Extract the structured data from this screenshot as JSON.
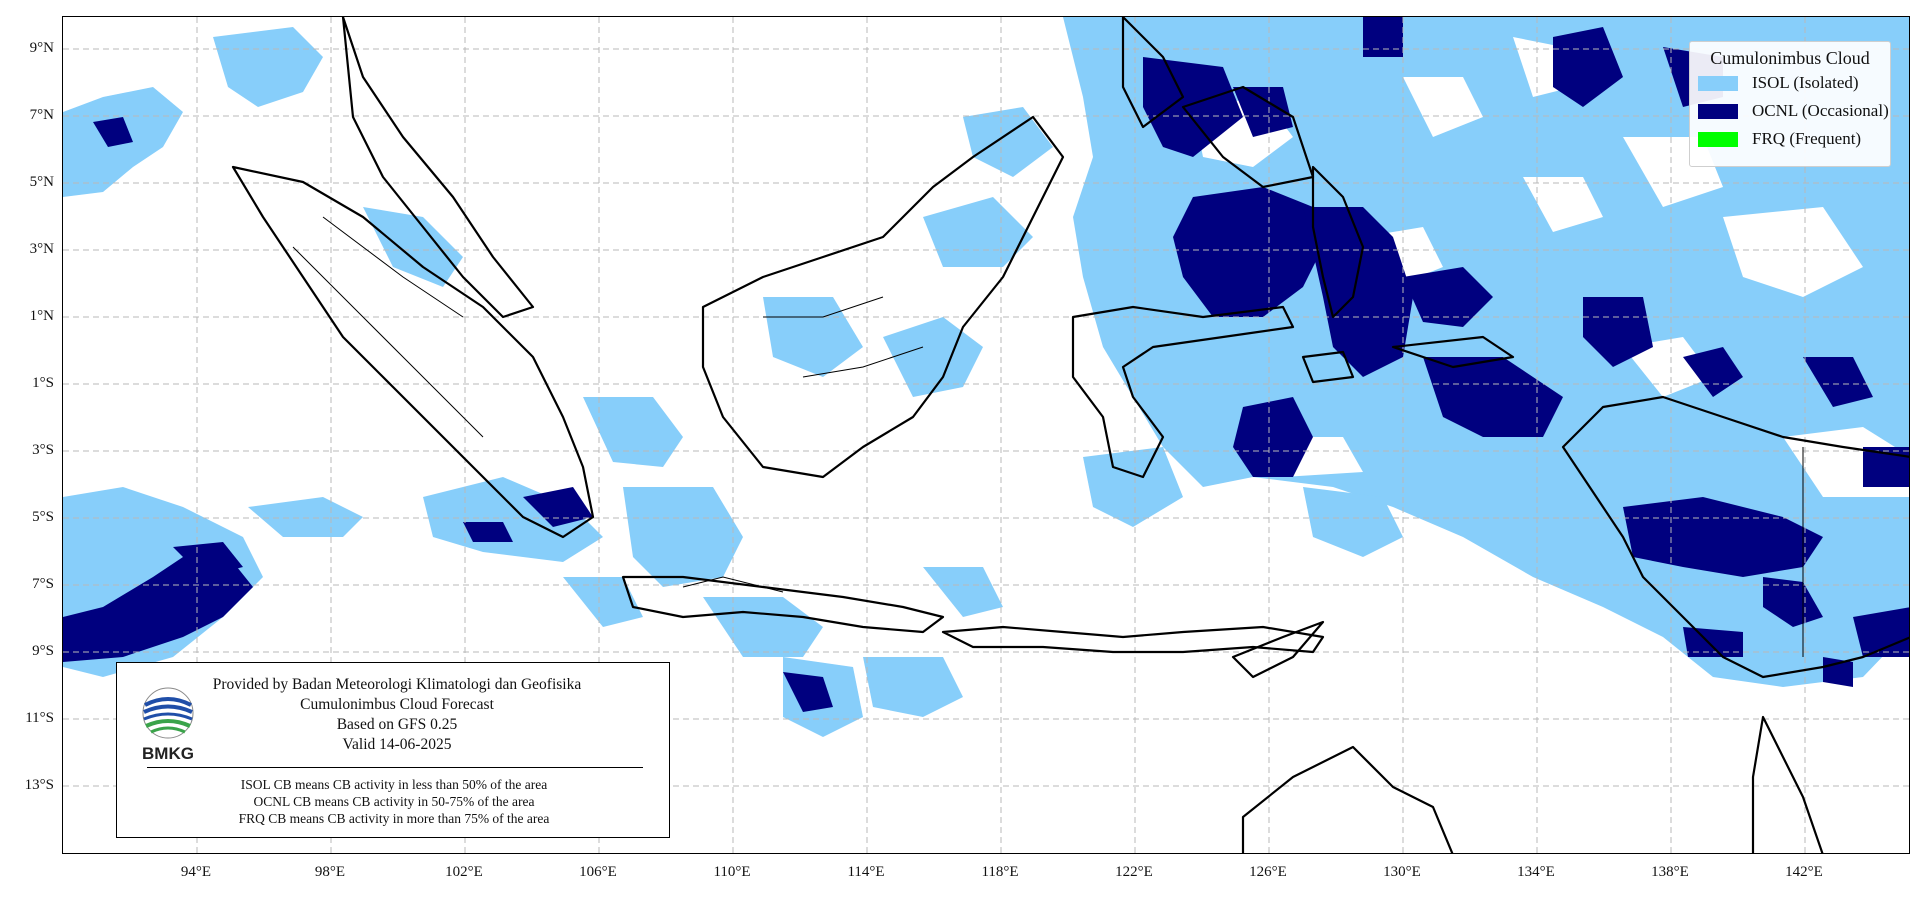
{
  "legend": {
    "title": "Cumulonimbus Cloud",
    "items": [
      {
        "key": "isol",
        "label": "ISOL (Isolated)",
        "color": "#87cefa"
      },
      {
        "key": "ocnl",
        "label": "OCNL (Occasional)",
        "color": "#00007f"
      },
      {
        "key": "frq",
        "label": "FRQ (Frequent)",
        "color": "#00ff00"
      }
    ]
  },
  "lat_labels": [
    "9°N",
    "7°N",
    "5°N",
    "3°N",
    "1°N",
    "1°S",
    "3°S",
    "5°S",
    "7°S",
    "9°S",
    "11°S",
    "13°S"
  ],
  "lon_labels": [
    "94°E",
    "98°E",
    "102°E",
    "106°E",
    "110°E",
    "114°E",
    "118°E",
    "122°E",
    "126°E",
    "130°E",
    "134°E",
    "138°E",
    "142°E"
  ],
  "info": {
    "lines": [
      "Provided by Badan Meteorologi Klimatologi dan Geofisika",
      "Cumulonimbus Cloud Forecast",
      "Based on GFS 0.25",
      "Valid 14-06-2025"
    ],
    "notes": [
      "ISOL CB means CB activity in less than 50% of the area",
      "OCNL CB means CB activity in 50-75% of the area",
      "FRQ CB means CB activity in more than 75% of the area"
    ],
    "logo_text": "BMKG"
  },
  "colors": {
    "isol": "#87cefa",
    "ocnl": "#00007f",
    "frq": "#00ff00",
    "grid": "#b8b8b8",
    "coast": "#000000"
  }
}
